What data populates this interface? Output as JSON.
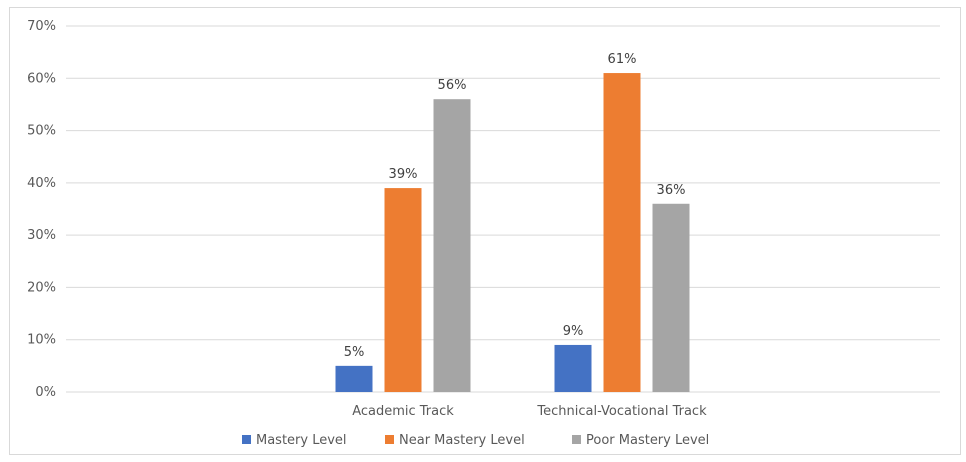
{
  "chart_data": {
    "type": "bar",
    "title": "",
    "xlabel": "",
    "ylabel": "",
    "categories": [
      "Academic Track",
      "Technical-Vocational Track"
    ],
    "ylim": [
      0,
      70
    ],
    "y_ticks": [
      "0%",
      "10%",
      "20%",
      "30%",
      "40%",
      "50%",
      "60%",
      "70%"
    ],
    "y_tick_values": [
      0,
      10,
      20,
      30,
      40,
      50,
      60,
      70
    ],
    "grid": true,
    "legend_position": "bottom",
    "series": [
      {
        "name": "Mastery Level",
        "values": [
          5,
          9
        ],
        "labels": [
          "5%",
          "9%"
        ],
        "color": "#4472c4"
      },
      {
        "name": "Near Mastery Level",
        "values": [
          39,
          61
        ],
        "labels": [
          "39%",
          "61%"
        ],
        "color": "#ed7d31"
      },
      {
        "name": "Poor Mastery Level",
        "values": [
          56,
          36
        ],
        "labels": [
          "56%",
          "36%"
        ],
        "color": "#a5a5a5"
      }
    ]
  }
}
